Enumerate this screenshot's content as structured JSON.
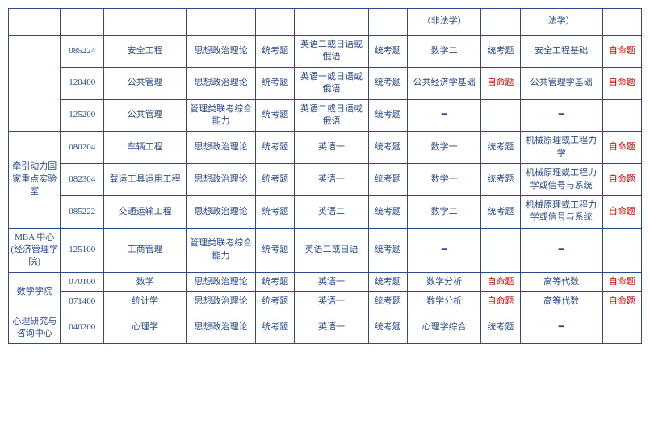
{
  "colors": {
    "border": "#2a4a8a",
    "text_normal": "#2a4a8a",
    "text_red": "#cc0000",
    "background": "#ffffff"
  },
  "typography": {
    "font_family": "SimSun",
    "font_size_pt": 9
  },
  "header_partial": {
    "c3": "（非法学）",
    "c4": "法学）"
  },
  "dash": "━",
  "type_uni": "统考题",
  "type_self": "自命题",
  "groups": [
    {
      "dept": "",
      "dept_rowspan": 3,
      "rows": [
        {
          "code": "085224",
          "major": "安全工程",
          "c1": "思想政治理论",
          "t1": "uni",
          "c2": "英语二或日语或俄语",
          "t2": "uni",
          "c3": "数学二",
          "t3": "uni",
          "c4": "安全工程基础",
          "t4": "self"
        },
        {
          "code": "120400",
          "major": "公共管理",
          "c1": "思想政治理论",
          "t1": "uni",
          "c2": "英语一或日语或俄语",
          "t2": "uni",
          "c3": "公共经济学基础",
          "t3": "self",
          "c4": "公共管理学基础",
          "t4": "self"
        },
        {
          "code": "125200",
          "major": "公共管理",
          "c1": "管理类联考综合能力",
          "t1": "uni",
          "c2": "英语二或日语或俄语",
          "t2": "uni",
          "c3": "━",
          "t3": "",
          "c4": "━",
          "t4": ""
        }
      ]
    },
    {
      "dept": "牵引动力国家重点实验室",
      "dept_rowspan": 3,
      "rows": [
        {
          "code": "080204",
          "major": "车辆工程",
          "c1": "思想政治理论",
          "t1": "uni",
          "c2": "英语一",
          "t2": "uni",
          "c3": "数学一",
          "t3": "uni",
          "c4": "机械原理或工程力学",
          "t4": "self"
        },
        {
          "code": "082304",
          "major": "载运工具运用工程",
          "c1": "思想政治理论",
          "t1": "uni",
          "c2": "英语一",
          "t2": "uni",
          "c3": "数学一",
          "t3": "uni",
          "c4": "机械原理或工程力学或信号与系统",
          "t4": "self"
        },
        {
          "code": "085222",
          "major": "交通运输工程",
          "c1": "思想政治理论",
          "t1": "uni",
          "c2": "英语二",
          "t2": "uni",
          "c3": "数学二",
          "t3": "uni",
          "c4": "机械原理或工程力学或信号与系统",
          "t4": "self"
        }
      ]
    },
    {
      "dept": "MBA 中心(经济管理学院)",
      "dept_rowspan": 1,
      "rows": [
        {
          "code": "125100",
          "major": "工商管理",
          "c1": "管理类联考综合能力",
          "t1": "uni",
          "c2": "英语二或日语",
          "t2": "uni",
          "c3": "━",
          "t3": "",
          "c4": "━",
          "t4": ""
        }
      ]
    },
    {
      "dept": "数学学院",
      "dept_rowspan": 2,
      "rows": [
        {
          "code": "070100",
          "major": "数学",
          "c1": "思想政治理论",
          "t1": "uni",
          "c2": "英语一",
          "t2": "uni",
          "c3": "数学分析",
          "t3": "self",
          "c4": "高等代数",
          "t4": "self"
        },
        {
          "code": "071400",
          "major": "统计学",
          "c1": "思想政治理论",
          "t1": "uni",
          "c2": "英语一",
          "t2": "uni",
          "c3": "数学分析",
          "t3": "self",
          "c4": "高等代数",
          "t4": "self"
        }
      ]
    },
    {
      "dept": "心理研究与咨询中心",
      "dept_rowspan": 1,
      "rows": [
        {
          "code": "040200",
          "major": "心理学",
          "c1": "思想政治理论",
          "t1": "uni",
          "c2": "英语一",
          "t2": "uni",
          "c3": "心理学综合",
          "t3": "uni",
          "c4": "━",
          "t4": ""
        }
      ]
    }
  ]
}
